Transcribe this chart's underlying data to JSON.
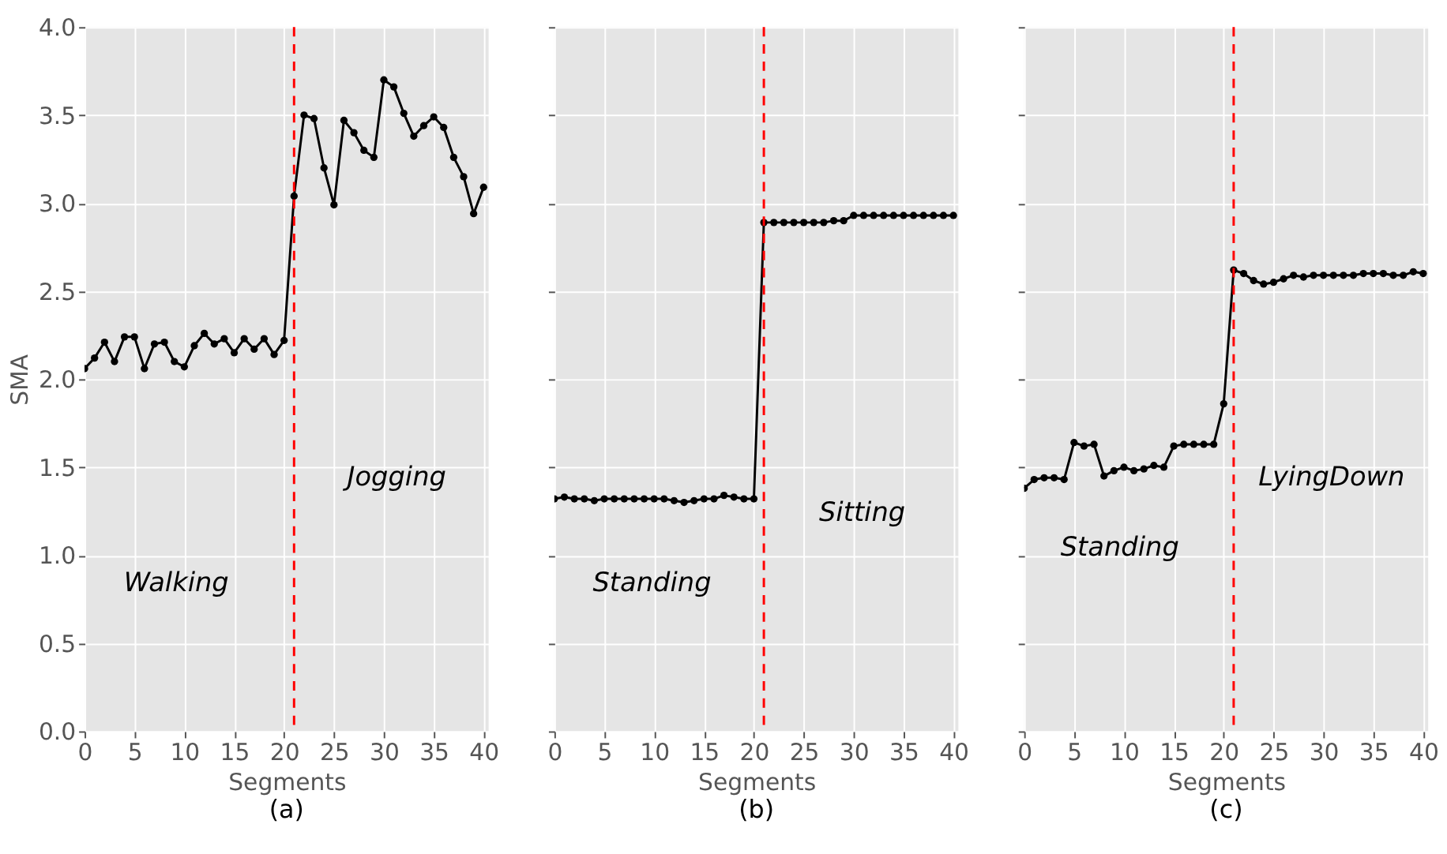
{
  "chart_data": [
    {
      "type": "line",
      "title": "(a)",
      "xlabel": "Segments",
      "ylabel": "SMA",
      "x": [
        0,
        1,
        2,
        3,
        4,
        5,
        6,
        7,
        8,
        9,
        10,
        11,
        12,
        13,
        14,
        15,
        16,
        17,
        18,
        19,
        20,
        21,
        22,
        23,
        24,
        25,
        26,
        27,
        28,
        29,
        30,
        31,
        32,
        33,
        34,
        35,
        36,
        37,
        38,
        39,
        40
      ],
      "series": [
        {
          "color": "#000000",
          "values": [
            2.06,
            2.12,
            2.21,
            2.1,
            2.24,
            2.24,
            2.06,
            2.2,
            2.21,
            2.1,
            2.07,
            2.19,
            2.26,
            2.2,
            2.23,
            2.15,
            2.23,
            2.17,
            2.23,
            2.14,
            2.22,
            3.04,
            3.5,
            3.48,
            3.2,
            2.99,
            3.47,
            3.4,
            3.3,
            3.26,
            3.7,
            3.66,
            3.51,
            3.38,
            3.44,
            3.49,
            3.43,
            3.26,
            3.15,
            2.94,
            3.09
          ]
        }
      ],
      "xlim": [
        0,
        40.5
      ],
      "xticks": [
        0,
        5,
        10,
        15,
        20,
        25,
        30,
        35,
        40
      ],
      "ylim": [
        0,
        4
      ],
      "yticks": [
        {
          "value": 0,
          "label": "0.0"
        },
        {
          "value": 0.5,
          "label": "0.5"
        },
        {
          "value": 1,
          "label": "1.0"
        },
        {
          "value": 1.5,
          "label": "1.5"
        },
        {
          "value": 2,
          "label": "2.0"
        },
        {
          "value": 2.5,
          "label": "2.5"
        },
        {
          "value": 3,
          "label": "3.0"
        },
        {
          "value": 3.5,
          "label": "3.5"
        },
        {
          "value": 4,
          "label": "4.0"
        }
      ],
      "ref_lines": [
        {
          "axis": "x",
          "value": 21,
          "color": "#ff0000",
          "line_style": "dashed"
        }
      ],
      "annotations": [
        "Walking",
        "Jogging"
      ],
      "grid": true,
      "marker": "circle",
      "line_style": "solid"
    },
    {
      "type": "line",
      "title": "(b)",
      "xlabel": "Segments",
      "x": [
        0,
        1,
        2,
        3,
        4,
        5,
        6,
        7,
        8,
        9,
        10,
        11,
        12,
        13,
        14,
        15,
        16,
        17,
        18,
        19,
        20,
        21,
        22,
        23,
        24,
        25,
        26,
        27,
        28,
        29,
        30,
        31,
        32,
        33,
        34,
        35,
        36,
        37,
        38,
        39,
        40
      ],
      "series": [
        {
          "color": "#000000",
          "values": [
            1.32,
            1.33,
            1.32,
            1.32,
            1.31,
            1.32,
            1.32,
            1.32,
            1.32,
            1.32,
            1.32,
            1.32,
            1.31,
            1.3,
            1.31,
            1.32,
            1.32,
            1.34,
            1.33,
            1.32,
            1.32,
            2.89,
            2.89,
            2.89,
            2.89,
            2.89,
            2.89,
            2.89,
            2.9,
            2.9,
            2.93,
            2.93,
            2.93,
            2.93,
            2.93,
            2.93,
            2.93,
            2.93,
            2.93,
            2.93,
            2.93
          ]
        }
      ],
      "xlim": [
        0,
        40.5
      ],
      "xticks": [
        0,
        5,
        10,
        15,
        20,
        25,
        30,
        35,
        40
      ],
      "ylim": [
        0,
        4
      ],
      "yticks": [
        {
          "value": 0,
          "label": null
        },
        {
          "value": 0.5,
          "label": null
        },
        {
          "value": 1,
          "label": null
        },
        {
          "value": 1.5,
          "label": null
        },
        {
          "value": 2,
          "label": null
        },
        {
          "value": 2.5,
          "label": null
        },
        {
          "value": 3,
          "label": null
        },
        {
          "value": 3.5,
          "label": null
        },
        {
          "value": 4,
          "label": null
        }
      ],
      "ref_lines": [
        {
          "axis": "x",
          "value": 21,
          "color": "#ff0000",
          "line_style": "dashed"
        }
      ],
      "annotations": [
        "Standing",
        "Sitting"
      ],
      "grid": true,
      "marker": "circle",
      "line_style": "solid",
      "tick_labels": "x"
    },
    {
      "type": "line",
      "title": "(c)",
      "xlabel": "Segments",
      "x": [
        0,
        1,
        2,
        3,
        4,
        5,
        6,
        7,
        8,
        9,
        10,
        11,
        12,
        13,
        14,
        15,
        16,
        17,
        18,
        19,
        20,
        21,
        22,
        23,
        24,
        25,
        26,
        27,
        28,
        29,
        30,
        31,
        32,
        33,
        34,
        35,
        36,
        37,
        38,
        39,
        40
      ],
      "series": [
        {
          "color": "#000000",
          "values": [
            1.38,
            1.43,
            1.44,
            1.44,
            1.43,
            1.64,
            1.62,
            1.63,
            1.45,
            1.48,
            1.5,
            1.48,
            1.49,
            1.51,
            1.5,
            1.62,
            1.63,
            1.63,
            1.63,
            1.63,
            1.86,
            2.62,
            2.6,
            2.56,
            2.54,
            2.55,
            2.57,
            2.59,
            2.58,
            2.59,
            2.59,
            2.59,
            2.59,
            2.59,
            2.6,
            2.6,
            2.6,
            2.59,
            2.59,
            2.61,
            2.6
          ]
        }
      ],
      "xlim": [
        0,
        40.5
      ],
      "xticks": [
        0,
        5,
        10,
        15,
        20,
        25,
        30,
        35,
        40
      ],
      "ylim": [
        0,
        4
      ],
      "yticks": [
        {
          "value": 0,
          "label": null
        },
        {
          "value": 0.5,
          "label": null
        },
        {
          "value": 1,
          "label": null
        },
        {
          "value": 1.5,
          "label": null
        },
        {
          "value": 2,
          "label": null
        },
        {
          "value": 2.5,
          "label": null
        },
        {
          "value": 3,
          "label": null
        },
        {
          "value": 3.5,
          "label": null
        },
        {
          "value": 4,
          "label": null
        }
      ],
      "ref_lines": [
        {
          "axis": "x",
          "value": 21,
          "color": "#ff0000",
          "line_style": "dashed"
        }
      ],
      "annotations": [
        "Standing",
        "LyingDown"
      ],
      "grid": true,
      "marker": "circle",
      "line_style": "solid",
      "tick_labels": "x"
    }
  ]
}
